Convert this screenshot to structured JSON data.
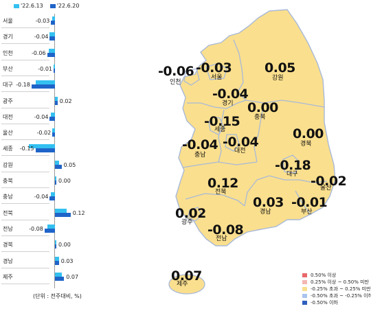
{
  "legend_top": {
    "series1": "'22.6.13",
    "series2": "'22.6.20",
    "series1_color": "#33c0f0",
    "series2_color": "#1f64c8"
  },
  "chart_data": {
    "type": "bar",
    "orientation": "horizontal",
    "categories": [
      "서울",
      "경기",
      "인천",
      "부산",
      "대구",
      "광주",
      "대전",
      "울산",
      "세종",
      "강원",
      "충북",
      "충남",
      "전북",
      "전남",
      "경북",
      "경남",
      "제주"
    ],
    "series": [
      {
        "name": "'22.6.13",
        "values": [
          -0.02,
          -0.04,
          -0.05,
          -0.01,
          -0.15,
          0.02,
          -0.03,
          -0.02,
          -0.2,
          0.03,
          0.0,
          -0.03,
          0.09,
          -0.06,
          0.0,
          0.03,
          0.05
        ]
      },
      {
        "name": "'22.6.20",
        "values": [
          -0.03,
          -0.04,
          -0.06,
          -0.01,
          -0.18,
          0.02,
          -0.04,
          -0.02,
          -0.15,
          0.05,
          0.0,
          -0.04,
          0.12,
          -0.08,
          0.0,
          0.03,
          0.07
        ]
      }
    ],
    "value_labels": [
      "-0.03",
      "-0.04",
      "-0.06",
      "-0.01",
      "-0.18",
      "0.02",
      "-0.04",
      "-0.02",
      "-0.15",
      "0.05",
      "0.00",
      "-0.04",
      "0.12",
      "-0.08",
      "0.00",
      "0.03",
      "0.07"
    ],
    "unit_note": "(단위 : 전주대비, %)"
  },
  "map": {
    "regions": [
      {
        "name": "인천",
        "value": "-0.06"
      },
      {
        "name": "서울",
        "value": "-0.03"
      },
      {
        "name": "강원",
        "value": "0.05"
      },
      {
        "name": "경기",
        "value": "-0.04"
      },
      {
        "name": "충북",
        "value": "0.00"
      },
      {
        "name": "세종",
        "value": "-0.15"
      },
      {
        "name": "경북",
        "value": "0.00"
      },
      {
        "name": "충남",
        "value": "-0.04"
      },
      {
        "name": "대전",
        "value": "-0.04"
      },
      {
        "name": "대구",
        "value": "-0.18"
      },
      {
        "name": "울산",
        "value": "-0.02"
      },
      {
        "name": "전북",
        "value": "0.12"
      },
      {
        "name": "경남",
        "value": "0.03"
      },
      {
        "name": "부산",
        "value": "-0.01"
      },
      {
        "name": "광주",
        "value": "0.02"
      },
      {
        "name": "전남",
        "value": "-0.08"
      },
      {
        "name": "제주",
        "value": "0.07"
      }
    ],
    "fill_color": "#fadf8e",
    "border_color": "#a8b9d8"
  },
  "legend_bottom": [
    {
      "label": "0.50% 이상",
      "color": "#e8686a"
    },
    {
      "label": "0.25% 이상 ~ 0.50% 미만",
      "color": "#f3b7b3"
    },
    {
      "label": "-0.25% 초과 ~ 0.25% 미만",
      "color": "#fadf8e"
    },
    {
      "label": "-0.50% 초과 ~ -0.25% 이하",
      "color": "#aac4ec"
    },
    {
      "label": "-0.50% 이하",
      "color": "#2f5fbd"
    }
  ]
}
